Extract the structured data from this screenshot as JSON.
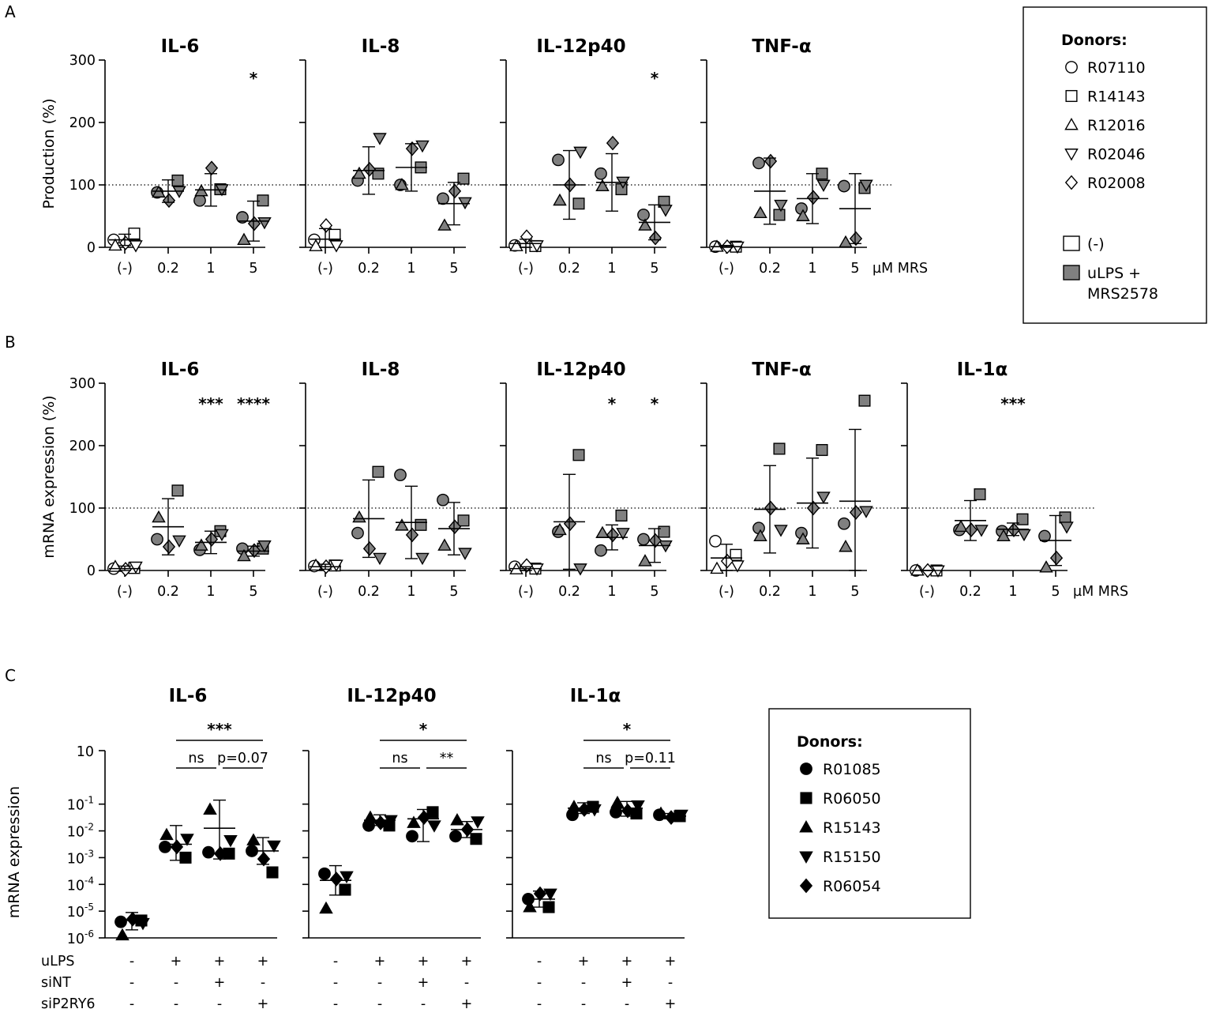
{
  "panel_labels": [
    "A",
    "B",
    "C"
  ],
  "axis_unit_label": "µM MRS",
  "chart_data": [
    {
      "id": "A",
      "type": "scatter",
      "ylabel": "Production (%)",
      "yticks": [
        0,
        100,
        200,
        300
      ],
      "ylim": [
        0,
        300
      ],
      "reference_line": 100,
      "categories": [
        "(-)",
        "0.2",
        "1",
        "5"
      ],
      "panels": [
        {
          "title": "IL-6",
          "significance": [
            "",
            "",
            "",
            "*"
          ],
          "mean": [
            12,
            90,
            92,
            42
          ],
          "sd": [
            9,
            18,
            26,
            32
          ],
          "points": [
            [
              12,
              22,
              3,
              3,
              7
            ],
            [
              88,
              107,
              88,
              90,
              75
            ],
            [
              75,
              93,
              90,
              93,
              127
            ],
            [
              48,
              75,
              12,
              40,
              38
            ]
          ]
        },
        {
          "title": "IL-8",
          "significance": [
            "",
            "",
            "",
            ""
          ],
          "mean": [
            13,
            123,
            128,
            70
          ],
          "sd": [
            17,
            38,
            38,
            34
          ],
          "points": [
            [
              12,
              20,
              2,
              3,
              35
            ],
            [
              107,
              118,
              118,
              175,
              125
            ],
            [
              100,
              128,
              100,
              163,
              158
            ],
            [
              78,
              110,
              35,
              72,
              90
            ]
          ]
        },
        {
          "title": "IL-12p40",
          "significance": [
            "",
            "",
            "",
            "*"
          ],
          "mean": [
            6,
            100,
            104,
            40
          ],
          "sd": [
            7,
            55,
            46,
            28
          ],
          "points": [
            [
              3,
              2,
              2,
              3,
              17
            ],
            [
              140,
              70,
              75,
              153,
              100
            ],
            [
              118,
              93,
              98,
              105,
              167
            ],
            [
              52,
              73,
              35,
              60,
              15
            ]
          ]
        },
        {
          "title": "TNF-α",
          "significance": [
            "",
            "",
            "",
            ""
          ],
          "mean": [
            1,
            90,
            78,
            62
          ],
          "sd": [
            2,
            53,
            40,
            56
          ],
          "points": [
            [
              1,
              1,
              1,
              1,
              1
            ],
            [
              135,
              52,
              55,
              68,
              138
            ],
            [
              62,
              118,
              50,
              100,
              80
            ],
            [
              98,
              95,
              8,
              100,
              14
            ]
          ]
        }
      ],
      "legend": {
        "title": "Donors:",
        "donors": [
          "R07110",
          "R14143",
          "R12016",
          "R02046",
          "R02008"
        ],
        "conditions": [
          "(-)",
          "uLPS +",
          "MRS2578"
        ]
      }
    },
    {
      "id": "B",
      "type": "scatter",
      "ylabel": "mRNA expression (%)",
      "yticks": [
        0,
        100,
        200,
        300
      ],
      "ylim": [
        0,
        300
      ],
      "reference_line": 100,
      "categories": [
        "(-)",
        "0.2",
        "1",
        "5"
      ],
      "panels": [
        {
          "title": "IL-6",
          "significance": [
            "",
            "",
            "***",
            "****"
          ],
          "mean": [
            3,
            70,
            45,
            31
          ],
          "sd": [
            4,
            45,
            18,
            8
          ],
          "points": [
            [
              3,
              4,
              6,
              6,
              2
            ],
            [
              50,
              128,
              85,
              48,
              38
            ],
            [
              33,
              63,
              40,
              58,
              50
            ],
            [
              35,
              35,
              23,
              40,
              32
            ]
          ]
        },
        {
          "title": "IL-8",
          "significance": [
            "",
            "",
            "",
            ""
          ],
          "mean": [
            6,
            83,
            77,
            67
          ],
          "sd": [
            4,
            62,
            58,
            42
          ],
          "points": [
            [
              7,
              8,
              8,
              9,
              6
            ],
            [
              60,
              158,
              85,
              20,
              35
            ],
            [
              153,
              73,
              72,
              20,
              57
            ],
            [
              113,
              80,
              40,
              28,
              70
            ]
          ]
        },
        {
          "title": "IL-12p40",
          "significance": [
            "",
            "",
            "*",
            "*"
          ],
          "mean": [
            3,
            78,
            53,
            40
          ],
          "sd": [
            3,
            76,
            20,
            27
          ],
          "points": [
            [
              6,
              3,
              2,
              3,
              8
            ],
            [
              62,
              185,
              65,
              3,
              75
            ],
            [
              32,
              88,
              60,
              60,
              57
            ],
            [
              50,
              62,
              15,
              40,
              48
            ]
          ]
        },
        {
          "title": "TNF-α",
          "significance": [
            "",
            "",
            "",
            ""
          ],
          "mean": [
            20,
            98,
            108,
            111
          ],
          "sd": [
            22,
            70,
            72,
            115
          ],
          "points": [
            [
              47,
              25,
              3,
              8,
              15
            ],
            [
              68,
              195,
              55,
              65,
              100
            ],
            [
              60,
              193,
              50,
              118,
              100
            ],
            [
              75,
              272,
              38,
              95,
              93
            ]
          ]
        },
        {
          "title": "IL-1α",
          "significance": [
            "",
            "",
            "***",
            ""
          ],
          "mean": [
            0,
            80,
            66,
            48
          ],
          "sd": [
            0,
            32,
            10,
            40
          ],
          "points": [
            [
              0,
              0,
              0,
              0,
              0
            ],
            [
              65,
              122,
              70,
              65,
              65
            ],
            [
              63,
              82,
              55,
              58,
              65
            ],
            [
              55,
              85,
              5,
              70,
              20
            ]
          ]
        }
      ]
    },
    {
      "id": "C",
      "type": "scatter",
      "yscale": "log",
      "ylabel": "mRNA expression",
      "ytick_base": "10",
      "ytick_exponents": [
        "",
        "-1",
        "-2",
        "-3",
        "-4",
        "-5",
        "-6"
      ],
      "ylim_log10": [
        -6,
        1
      ],
      "conditions": {
        "row_labels": [
          "uLPS",
          "siNT",
          "siP2RY6"
        ],
        "values": [
          [
            "-",
            "+",
            "+",
            "+"
          ],
          [
            "-",
            "-",
            "+",
            "-"
          ],
          [
            "-",
            "-",
            "-",
            "+"
          ]
        ]
      },
      "panels": [
        {
          "title": "IL-6",
          "log10_mean": [
            -5.35,
            -2.5,
            -1.9,
            -2.75
          ],
          "log10_err_high": [
            -5.05,
            -1.8,
            -0.85,
            -2.25
          ],
          "log10_err_low": [
            -5.7,
            -3.1,
            -3.05,
            -3.25
          ],
          "log10_points": [
            [
              -5.4,
              -5.35,
              -5.9,
              -5.45,
              -5.3
            ],
            [
              -2.6,
              -3,
              -2.15,
              -2.3,
              -2.6
            ],
            [
              -2.8,
              -2.85,
              -1.2,
              -2.35,
              -2.85
            ],
            [
              -2.75,
              -3.55,
              -2.35,
              -2.55,
              -3.05
            ]
          ],
          "brackets": [
            {
              "label": "***",
              "from": 1,
              "to": 3,
              "level": 1
            },
            {
              "label": "ns",
              "from": 1,
              "to": 2,
              "level": 0
            },
            {
              "label": "p=0.07",
              "from": 2,
              "to": 3,
              "level": 0
            }
          ]
        },
        {
          "title": "IL-12p40",
          "log10_mean": [
            -3.85,
            -1.6,
            -1.55,
            -1.95
          ],
          "log10_err_high": [
            -3.3,
            -1.4,
            -1.2,
            -1.65
          ],
          "log10_err_low": [
            -4.4,
            -1.8,
            -2.4,
            -2.25
          ],
          "log10_points": [
            [
              -3.6,
              -4.2,
              -4.9,
              -3.7,
              -3.8
            ],
            [
              -1.8,
              -1.8,
              -1.5,
              -1.6,
              -1.7
            ],
            [
              -2.2,
              -1.3,
              -1.7,
              -1.8,
              -1.5
            ],
            [
              -2.2,
              -2.3,
              -1.6,
              -1.65,
              -1.95
            ]
          ],
          "brackets": [
            {
              "label": "*",
              "from": 1,
              "to": 3,
              "level": 1
            },
            {
              "label": "ns",
              "from": 1,
              "to": 2,
              "level": 0
            },
            {
              "label": "**",
              "from": 2,
              "to": 3,
              "level": 0
            }
          ]
        },
        {
          "title": "IL-1α",
          "log10_mean": [
            -4.55,
            -1.15,
            -1.15,
            -1.45
          ],
          "log10_err_high": [
            -4.25,
            -0.95,
            -0.9,
            -1.35
          ],
          "log10_err_low": [
            -4.85,
            -1.35,
            -1.45,
            -1.55
          ],
          "log10_points": [
            [
              -4.55,
              -4.85,
              -4.85,
              -4.35,
              -4.35
            ],
            [
              -1.4,
              -1.1,
              -1.1,
              -1.2,
              -1.2
            ],
            [
              -1.3,
              -1.35,
              -0.95,
              -1.05,
              -1.25
            ],
            [
              -1.4,
              -1.45,
              -1.35,
              -1.4,
              -1.5
            ]
          ],
          "brackets": [
            {
              "label": "*",
              "from": 1,
              "to": 3,
              "level": 1
            },
            {
              "label": "ns",
              "from": 1,
              "to": 2,
              "level": 0
            },
            {
              "label": "p=0.11",
              "from": 2,
              "to": 3,
              "level": 0
            }
          ]
        }
      ],
      "legend": {
        "title": "Donors:",
        "donors": [
          "R01085",
          "R06050",
          "R15143",
          "R15150",
          "R06054"
        ]
      }
    }
  ]
}
